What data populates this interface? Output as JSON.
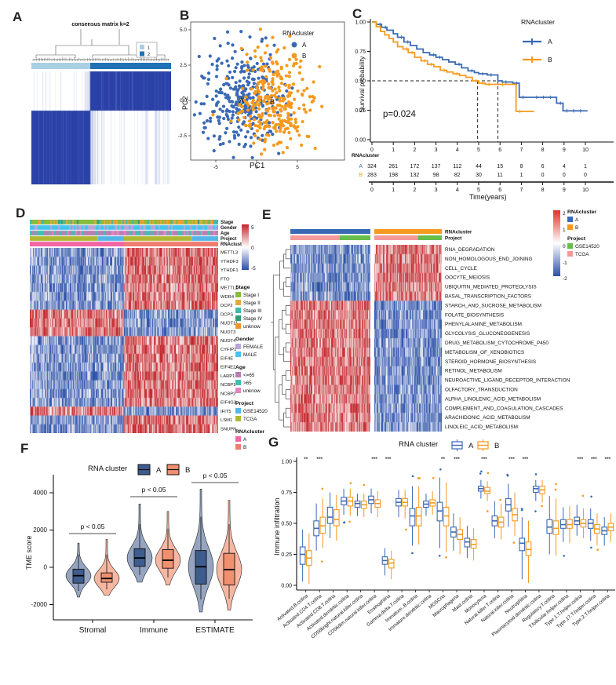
{
  "colors": {
    "blue": "#3A6AB4",
    "orange": "#F6991E",
    "ink": "#111111",
    "cluster_ab": [
      "#3A6AB4",
      "#F6991E"
    ],
    "violin_ab": [
      "#3E5C8E",
      "#F09070"
    ],
    "heat_red": "#C3262B",
    "heat_blue": "#2B50A8",
    "consensus_light": "#A9CFE5",
    "consensus_dark": "#2171B5",
    "consensus_matrix": "#2A41A8",
    "stage": [
      "#86BC3F",
      "#E2A93B",
      "#42B9A8",
      "#2F9E77",
      "#F2952E"
    ],
    "gender": [
      "#B9A6D9",
      "#46C4EF"
    ],
    "age": [
      "#B77FB4",
      "#3FBFB2",
      "#E383C0"
    ],
    "project_d": [
      "#53B6E8",
      "#AFB832"
    ],
    "rnacluster_d": [
      "#F266A5",
      "#F07B6F"
    ],
    "project_e": [
      "#67BE4B",
      "#F49A9A"
    ]
  },
  "chart_data": [
    {
      "id": "A",
      "panel_label": "A",
      "type": "heatmap",
      "title": "consensus matrix k=2",
      "legend_items": [
        "1",
        "2"
      ]
    },
    {
      "id": "B",
      "panel_label": "B",
      "type": "scatter",
      "legend_title": "RNAcluster",
      "series": [
        {
          "name": "A"
        },
        {
          "name": "B"
        }
      ],
      "xlabel": "PC1",
      "ylabel": "PC2",
      "xticks": [
        "-5",
        "0",
        "5"
      ],
      "yticks": [
        "5.0",
        "2.5",
        "0.0",
        "-2.5"
      ],
      "cluster_labels": [
        "A",
        "B"
      ],
      "cluster_centers": {
        "A": [
          -2.1,
          0.05
        ],
        "B": [
          2.15,
          -0.15
        ]
      },
      "n_points": {
        "A": 310,
        "B": 295
      }
    },
    {
      "id": "C",
      "panel_label": "C",
      "type": "line",
      "ylabel": "Survival probability",
      "xlabel": "Time(years)",
      "pvalue": "p=0.024",
      "legend_title": "RNAcluster",
      "yticks": [
        "1.00",
        "0.75",
        "0.50",
        "0.25",
        "0.00"
      ],
      "xticks": [
        "0",
        "1",
        "2",
        "3",
        "4",
        "5",
        "6",
        "7",
        "8",
        "9",
        "10"
      ],
      "risk_label": "RNAcluster",
      "risk_rows": [
        {
          "name": "A",
          "counts": [
            324,
            261,
            172,
            137,
            112,
            44,
            15,
            8,
            6,
            4,
            1
          ]
        },
        {
          "name": "B",
          "counts": [
            283,
            198,
            132,
            98,
            82,
            30,
            11,
            1,
            0,
            0,
            0
          ]
        }
      ],
      "curves": [
        {
          "name": "A",
          "points": [
            [
              0,
              1
            ],
            [
              0.2,
              0.98
            ],
            [
              0.45,
              0.955
            ],
            [
              0.7,
              0.93
            ],
            [
              1,
              0.9
            ],
            [
              1.2,
              0.87
            ],
            [
              1.5,
              0.83
            ],
            [
              1.8,
              0.8
            ],
            [
              2.1,
              0.77
            ],
            [
              2.4,
              0.74
            ],
            [
              2.7,
              0.72
            ],
            [
              3,
              0.7
            ],
            [
              3.3,
              0.68
            ],
            [
              3.6,
              0.66
            ],
            [
              3.9,
              0.64
            ],
            [
              4.2,
              0.61
            ],
            [
              4.5,
              0.585
            ],
            [
              4.8,
              0.57
            ],
            [
              5,
              0.56
            ],
            [
              5.4,
              0.55
            ],
            [
              5.9,
              0.5
            ],
            [
              6.1,
              0.49
            ],
            [
              6.6,
              0.48
            ],
            [
              6.9,
              0.36
            ],
            [
              8.5,
              0.36
            ],
            [
              8.65,
              0.31
            ],
            [
              8.95,
              0.245
            ],
            [
              10.1,
              0.245
            ]
          ]
        },
        {
          "name": "B",
          "points": [
            [
              0,
              1
            ],
            [
              0.2,
              0.96
            ],
            [
              0.4,
              0.92
            ],
            [
              0.6,
              0.89
            ],
            [
              0.8,
              0.86
            ],
            [
              1,
              0.83
            ],
            [
              1.2,
              0.79
            ],
            [
              1.45,
              0.77
            ],
            [
              1.7,
              0.74
            ],
            [
              2,
              0.7
            ],
            [
              2.3,
              0.67
            ],
            [
              2.6,
              0.64
            ],
            [
              2.9,
              0.62
            ],
            [
              3.2,
              0.59
            ],
            [
              3.5,
              0.575
            ],
            [
              3.8,
              0.56
            ],
            [
              4.1,
              0.545
            ],
            [
              4.4,
              0.53
            ],
            [
              4.7,
              0.5
            ],
            [
              5,
              0.48
            ],
            [
              5.3,
              0.47
            ],
            [
              6.6,
              0.47
            ],
            [
              6.75,
              0.24
            ],
            [
              7.6,
              0.24
            ]
          ]
        }
      ],
      "median_lines": {
        "h": 0.5,
        "v1": 4.95,
        "v2": 5.9
      }
    },
    {
      "id": "D",
      "panel_label": "D",
      "type": "heatmap",
      "annotation_labels": [
        "Stage",
        "Gender",
        "Age",
        "Project",
        "RNAcluster"
      ],
      "genes": [
        "METTL3",
        "YTHDF3",
        "YTHDF1",
        "FTO",
        "METTL1",
        "WDR4",
        "DCP2",
        "DCPS",
        "NUDT11",
        "NUDT3",
        "NUDT4",
        "CYFIP1",
        "EIF4E",
        "EIF4E2",
        "LARP1",
        "NCBP1",
        "NCBP2",
        "EIF4G3",
        "IFIT5",
        "LSM1",
        "SNUPN"
      ],
      "gene_dirs": [
        1,
        1,
        1,
        1,
        1,
        1,
        1,
        -1,
        -1,
        -1,
        1,
        1,
        1,
        1,
        1,
        1,
        1,
        1,
        -1,
        1,
        1
      ],
      "colorbar_ticks": [
        "5",
        "0",
        "-5"
      ],
      "legends": [
        {
          "title": "Stage",
          "items": [
            "Stage I",
            "Stage II",
            "Stage III",
            "Stage IV",
            "unknow"
          ],
          "palette": "stage"
        },
        {
          "title": "Gender",
          "items": [
            "FEMALE",
            "MALE"
          ],
          "palette": "gender"
        },
        {
          "title": "Age",
          "items": [
            "<=65",
            ">65",
            "unknow"
          ],
          "palette": "age"
        },
        {
          "title": "Project",
          "items": [
            "GSE14520",
            "TCGA"
          ],
          "palette": "project_d"
        },
        {
          "title": "RNAcluster",
          "items": [
            "A",
            "B"
          ],
          "palette": "rnacluster_d"
        }
      ]
    },
    {
      "id": "E",
      "panel_label": "E",
      "type": "heatmap",
      "annotation_labels": [
        "RNAcluster",
        "Project"
      ],
      "pathways": [
        "RNA_DEGRADATION",
        "NON_HOMOLOGOUS_END_JOINING",
        "CELL_CYCLE",
        "OOCYTE_MEIOSIS",
        "UBIQUITIN_MEDIATED_PROTEOLYSIS",
        "BASAL_TRANSCRIPTION_FACTORS",
        "STARCH_AND_SUCROSE_METABOLISM",
        "FOLATE_BIOSYNTHESIS",
        "PHENYLALANINE_METABOLISM",
        "GLYCOLYSIS_GLUCONEOGENESIS",
        "DRUG_METABOLISM_CYTOCHROME_P450",
        "METABOLISM_OF_XENOBIOTICS",
        "STEROID_HORMONE_BIOSYNTHESIS",
        "RETINOL_METABOLISM",
        "NEUROACTIVE_LIGAND_RECEPTOR_INTERACTION",
        "OLFACTORY_TRANSDUCTION",
        "ALPHA_LINOLENIC_ACID_METABOLISM",
        "COMPLEMENT_AND_COAGULATION_CASCADES",
        "ARACHIDONIC_ACID_METABOLISM",
        "LINOLEIC_ACID_METABOLISM"
      ],
      "split_row": 6,
      "colorbar_ticks": [
        "2",
        "1",
        "0",
        "-1",
        "-2"
      ],
      "legends": [
        {
          "title": "RNAcluster",
          "items": [
            "A",
            "B"
          ],
          "palette": "cluster_ab"
        },
        {
          "title": "Project",
          "items": [
            "GSE14520",
            "TCGA"
          ],
          "palette": "project_e"
        }
      ]
    },
    {
      "id": "F",
      "panel_label": "F",
      "type": "violin",
      "legend_title": "RNA cluster",
      "ylabel": "TME score",
      "yticks": [
        "4000",
        "2000",
        "0",
        "-2000"
      ],
      "categories": [
        "Stromal",
        "Immune",
        "ESTIMATE"
      ],
      "p_labels": [
        "p < 0.05",
        "p < 0.05",
        "p < 0.05"
      ],
      "series": [
        {
          "name": "A",
          "stats": [
            {
              "min": -1600,
              "q1": -850,
              "med": -450,
              "q3": -100,
              "max": 1300
            },
            {
              "min": -800,
              "q1": 50,
              "med": 500,
              "q3": 1000,
              "max": 3400
            },
            {
              "min": -2400,
              "q1": -900,
              "med": 30,
              "q3": 900,
              "max": 4200
            }
          ]
        },
        {
          "name": "B",
          "stats": [
            {
              "min": -1500,
              "q1": -800,
              "med": -600,
              "q3": -300,
              "max": 1500
            },
            {
              "min": -950,
              "q1": -50,
              "med": 380,
              "q3": 950,
              "max": 3000
            },
            {
              "min": -2300,
              "q1": -950,
              "med": -120,
              "q3": 750,
              "max": 3600
            }
          ]
        }
      ]
    },
    {
      "id": "G",
      "panel_label": "G",
      "type": "box",
      "legend_title": "RNA cluster",
      "ylabel": "Immune infiltration",
      "yticks": [
        "1.00",
        "0.75",
        "0.50",
        "0.25",
        "0.00"
      ],
      "categories": [
        "Activated.B.cellna",
        "Activated.CD4.T.cellna",
        "Activated.CD8.T.cellna",
        "Activated.dendritic.cellna",
        "CD56bright.natural.killer.cellna",
        "CD56dim.natural.killer.cellna",
        "Eosinophilna",
        "Gamma.delta.T.cellna",
        "Immature..B.cellna",
        "Immature.dendritic.cellna",
        "MDSCna",
        "Macrophagena",
        "Mast.cellna",
        "Monocytena",
        "Natural.killer.T.cellna",
        "Natural.killer.cellna",
        "Neutrophilna",
        "Plasmacytoid.dendritic.cellna",
        "Regulatory.T.cellna",
        "T.follicular.helper.cellna",
        "Type.1.T.helper.cellna",
        "Type.17.T.helper.cellna",
        "Type.2.T.helper.cellna"
      ],
      "sig": [
        "**",
        "***",
        "",
        "",
        "",
        "***",
        "***",
        "",
        "",
        "",
        "**",
        "***",
        "",
        "***",
        "",
        "***",
        "***",
        "",
        "",
        "",
        "***",
        "***",
        "***"
      ],
      "series": [
        {
          "name": "A",
          "stats": [
            [
              0.03,
              0.17,
              0.25,
              0.31,
              0.45
            ],
            [
              0.28,
              0.4,
              0.46,
              0.52,
              0.66
            ],
            [
              0.38,
              0.5,
              0.55,
              0.63,
              0.75
            ],
            [
              0.57,
              0.65,
              0.68,
              0.71,
              0.78
            ],
            [
              0.56,
              0.63,
              0.66,
              0.68,
              0.74
            ],
            [
              0.58,
              0.66,
              0.69,
              0.72,
              0.78
            ],
            [
              0.08,
              0.17,
              0.2,
              0.23,
              0.3
            ],
            [
              0.55,
              0.64,
              0.67,
              0.7,
              0.77
            ],
            [
              0.32,
              0.48,
              0.56,
              0.62,
              0.8
            ],
            [
              0.56,
              0.63,
              0.655,
              0.68,
              0.74
            ],
            [
              0.3,
              0.52,
              0.6,
              0.67,
              0.87
            ],
            [
              0.28,
              0.39,
              0.43,
              0.47,
              0.58
            ],
            [
              0.22,
              0.31,
              0.35,
              0.38,
              0.48
            ],
            [
              0.7,
              0.76,
              0.78,
              0.8,
              0.85
            ],
            [
              0.38,
              0.48,
              0.52,
              0.56,
              0.68
            ],
            [
              0.47,
              0.6,
              0.65,
              0.7,
              0.82
            ],
            [
              0.05,
              0.28,
              0.34,
              0.38,
              0.55
            ],
            [
              0.68,
              0.75,
              0.78,
              0.8,
              0.85
            ],
            [
              0.25,
              0.42,
              0.47,
              0.53,
              0.72
            ],
            [
              0.35,
              0.46,
              0.49,
              0.53,
              0.63
            ],
            [
              0.4,
              0.49,
              0.52,
              0.55,
              0.65
            ],
            [
              0.36,
              0.46,
              0.5,
              0.53,
              0.62
            ],
            [
              0.32,
              0.41,
              0.44,
              0.47,
              0.55
            ]
          ]
        },
        {
          "name": "B",
          "stats": [
            [
              0.01,
              0.16,
              0.22,
              0.28,
              0.42
            ],
            [
              0.3,
              0.42,
              0.48,
              0.55,
              0.7
            ],
            [
              0.36,
              0.48,
              0.53,
              0.61,
              0.73
            ],
            [
              0.56,
              0.64,
              0.68,
              0.71,
              0.78
            ],
            [
              0.55,
              0.62,
              0.65,
              0.68,
              0.74
            ],
            [
              0.55,
              0.63,
              0.66,
              0.69,
              0.76
            ],
            [
              0.05,
              0.14,
              0.18,
              0.21,
              0.28
            ],
            [
              0.54,
              0.64,
              0.67,
              0.7,
              0.77
            ],
            [
              0.33,
              0.48,
              0.56,
              0.63,
              0.8
            ],
            [
              0.57,
              0.64,
              0.665,
              0.69,
              0.76
            ],
            [
              0.27,
              0.48,
              0.56,
              0.63,
              0.83
            ],
            [
              0.25,
              0.37,
              0.41,
              0.45,
              0.55
            ],
            [
              0.2,
              0.3,
              0.33,
              0.37,
              0.46
            ],
            [
              0.68,
              0.74,
              0.76,
              0.79,
              0.84
            ],
            [
              0.37,
              0.47,
              0.51,
              0.55,
              0.66
            ],
            [
              0.4,
              0.52,
              0.57,
              0.62,
              0.75
            ],
            [
              0.02,
              0.24,
              0.29,
              0.35,
              0.52
            ],
            [
              0.67,
              0.74,
              0.77,
              0.8,
              0.85
            ],
            [
              0.24,
              0.41,
              0.46,
              0.52,
              0.7
            ],
            [
              0.34,
              0.46,
              0.49,
              0.53,
              0.64
            ],
            [
              0.38,
              0.47,
              0.5,
              0.53,
              0.62
            ],
            [
              0.32,
              0.42,
              0.455,
              0.49,
              0.58
            ],
            [
              0.35,
              0.44,
              0.47,
              0.5,
              0.58
            ]
          ]
        }
      ]
    }
  ]
}
